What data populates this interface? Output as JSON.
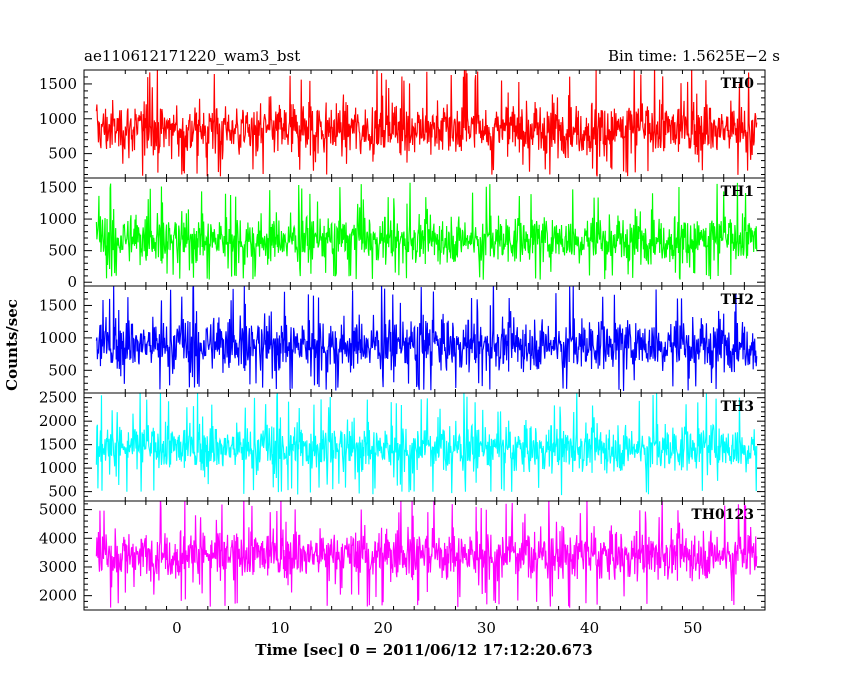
{
  "chart_data": {
    "type": "line",
    "title_left": "ae110612171220_wam3_bst",
    "title_right": "Bin time: 1.5625E−2 s",
    "xlabel": "Time [sec] 0 = 2011/06/12 17:12:20.673",
    "ylabel": "Counts/sec",
    "xlim": [
      -9,
      57
    ],
    "data_range": [
      -7.8,
      56.2
    ],
    "x_ticks": [
      0,
      10,
      20,
      30,
      40,
      50
    ],
    "grid": false,
    "series": [
      {
        "name": "TH0",
        "color": "#ff0000",
        "ylim": [
          150,
          1700
        ],
        "y_ticks": [
          500,
          1000,
          1500
        ],
        "mean": 850,
        "spread": 290,
        "min": 170
      },
      {
        "name": "TH1",
        "color": "#00ff00",
        "ylim": [
          -60,
          1650
        ],
        "y_ticks": [
          0,
          500,
          1000,
          1500
        ],
        "mean": 680,
        "spread": 280,
        "min": 40
      },
      {
        "name": "TH2",
        "color": "#0000ff",
        "ylim": [
          150,
          1800
        ],
        "y_ticks": [
          500,
          1000,
          1500
        ],
        "mean": 900,
        "spread": 300,
        "min": 180
      },
      {
        "name": "TH3",
        "color": "#00ffff",
        "ylim": [
          300,
          2600
        ],
        "y_ticks": [
          500,
          1000,
          1500,
          2000,
          2500
        ],
        "mean": 1430,
        "spread": 380,
        "min": 420
      },
      {
        "name": "TH0123",
        "color": "#ff00ff",
        "ylim": [
          1500,
          5300
        ],
        "y_ticks": [
          2000,
          3000,
          4000,
          5000
        ],
        "mean": 3430,
        "spread": 650,
        "min": 1560
      }
    ]
  }
}
